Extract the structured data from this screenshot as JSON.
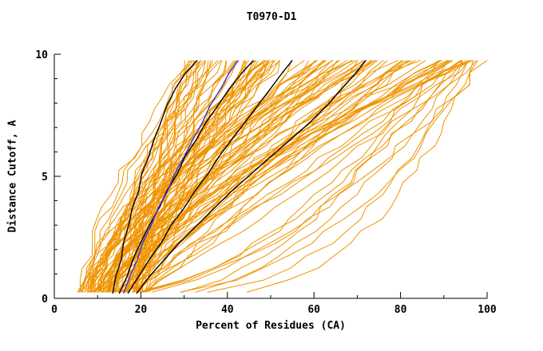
{
  "page": {
    "background": "#ffffff"
  },
  "chart_data": {
    "type": "line",
    "title": "T0970-D1",
    "xlabel": "Percent of Residues (CA)",
    "ylabel": "Distance Cutoff, A",
    "xlim": [
      0,
      100
    ],
    "ylim": [
      0,
      10
    ],
    "x_major_ticks": [
      0,
      20,
      40,
      60,
      80,
      100
    ],
    "x_minor_step": 10,
    "y_major_ticks": [
      0,
      5,
      10
    ],
    "y_minor_step": 1,
    "grid": false,
    "legend": "none",
    "colors": {
      "ensemble": "#ef9400",
      "highlight": "#000000",
      "special": "#3b33cc",
      "axis": "#000000"
    },
    "ensemble": {
      "name": "predicted-model-curves",
      "count": 120,
      "seed": 11,
      "start_x_range": [
        5,
        20
      ],
      "end_x_range": [
        30,
        100
      ],
      "cutoff_step": 0.5,
      "y_top": 9.75
    },
    "highlighted_series": [
      {
        "name": "black-model-1",
        "color": "highlight",
        "points": [
          [
            13.5,
            0.2
          ],
          [
            14.2,
            0.9
          ],
          [
            15.5,
            1.6
          ],
          [
            16.0,
            2.3
          ],
          [
            17.2,
            3.0
          ],
          [
            18.0,
            3.7
          ],
          [
            19.5,
            4.4
          ],
          [
            20.2,
            5.1
          ],
          [
            21.8,
            5.8
          ],
          [
            23.0,
            6.5
          ],
          [
            24.6,
            7.2
          ],
          [
            26.0,
            7.9
          ],
          [
            28.0,
            8.6
          ],
          [
            30.2,
            9.2
          ],
          [
            33.0,
            9.75
          ]
        ]
      },
      {
        "name": "black-model-2",
        "color": "highlight",
        "points": [
          [
            15.0,
            0.2
          ],
          [
            16.8,
            0.9
          ],
          [
            18.2,
            1.6
          ],
          [
            20.0,
            2.3
          ],
          [
            22.0,
            3.0
          ],
          [
            24.2,
            3.7
          ],
          [
            26.0,
            4.4
          ],
          [
            28.4,
            5.1
          ],
          [
            30.2,
            5.8
          ],
          [
            32.8,
            6.5
          ],
          [
            35.0,
            7.2
          ],
          [
            37.8,
            7.9
          ],
          [
            40.5,
            8.6
          ],
          [
            43.2,
            9.2
          ],
          [
            46.0,
            9.75
          ]
        ]
      },
      {
        "name": "black-model-3",
        "color": "highlight",
        "points": [
          [
            17.0,
            0.2
          ],
          [
            19.5,
            0.9
          ],
          [
            22.0,
            1.6
          ],
          [
            24.8,
            2.3
          ],
          [
            27.0,
            3.0
          ],
          [
            30.0,
            3.7
          ],
          [
            32.5,
            4.4
          ],
          [
            35.5,
            5.1
          ],
          [
            38.0,
            5.8
          ],
          [
            41.0,
            6.5
          ],
          [
            44.0,
            7.2
          ],
          [
            47.0,
            7.9
          ],
          [
            50.0,
            8.6
          ],
          [
            52.5,
            9.2
          ],
          [
            55.0,
            9.75
          ]
        ]
      },
      {
        "name": "black-model-4",
        "color": "highlight",
        "points": [
          [
            19.0,
            0.2
          ],
          [
            22.0,
            0.9
          ],
          [
            25.5,
            1.6
          ],
          [
            29.0,
            2.3
          ],
          [
            33.0,
            3.0
          ],
          [
            37.0,
            3.7
          ],
          [
            41.0,
            4.4
          ],
          [
            45.5,
            5.1
          ],
          [
            50.0,
            5.8
          ],
          [
            54.5,
            6.5
          ],
          [
            59.0,
            7.2
          ],
          [
            63.0,
            7.9
          ],
          [
            66.5,
            8.6
          ],
          [
            69.5,
            9.2
          ],
          [
            72.0,
            9.75
          ]
        ]
      },
      {
        "name": "blue-model",
        "color": "special",
        "points": [
          [
            16.0,
            0.2
          ],
          [
            17.5,
            0.9
          ],
          [
            19.2,
            1.6
          ],
          [
            20.5,
            2.3
          ],
          [
            22.4,
            3.0
          ],
          [
            24.0,
            3.7
          ],
          [
            26.2,
            4.4
          ],
          [
            27.8,
            5.1
          ],
          [
            30.0,
            5.8
          ],
          [
            32.0,
            6.5
          ],
          [
            34.2,
            7.2
          ],
          [
            36.0,
            7.9
          ],
          [
            38.5,
            8.6
          ],
          [
            40.3,
            9.2
          ],
          [
            42.5,
            9.75
          ]
        ]
      }
    ]
  }
}
